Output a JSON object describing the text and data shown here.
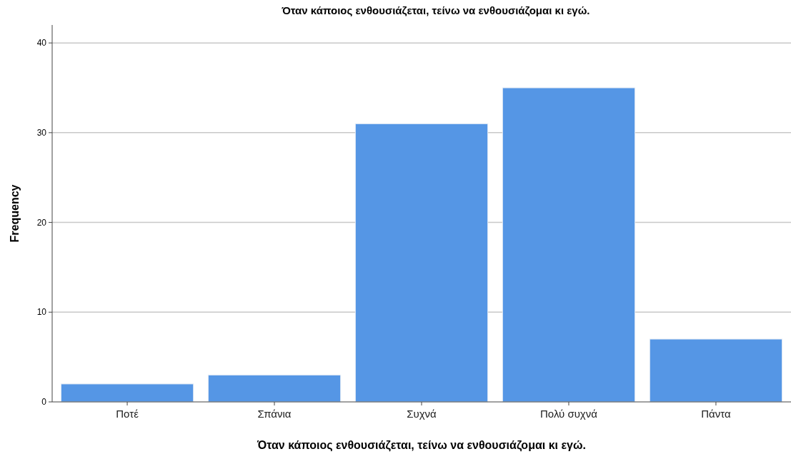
{
  "chart_data": {
    "type": "bar",
    "title": "Όταν κάποιος ενθουσιάζεται, τείνω να ενθουσιάζομαι κι εγώ.",
    "xlabel": "Όταν κάποιος ενθουσιάζεται, τείνω να ενθουσιάζομαι κι εγώ.",
    "ylabel": "Frequency",
    "categories": [
      "Ποτέ",
      "Σπάνια",
      "Συχνά",
      "Πολύ συχνά",
      "Πάντα"
    ],
    "values": [
      2,
      3,
      31,
      35,
      7
    ],
    "color": "#5596e5",
    "ylim": [
      0,
      42
    ],
    "yticks": [
      0,
      10,
      20,
      30,
      40
    ],
    "grid": "y"
  }
}
